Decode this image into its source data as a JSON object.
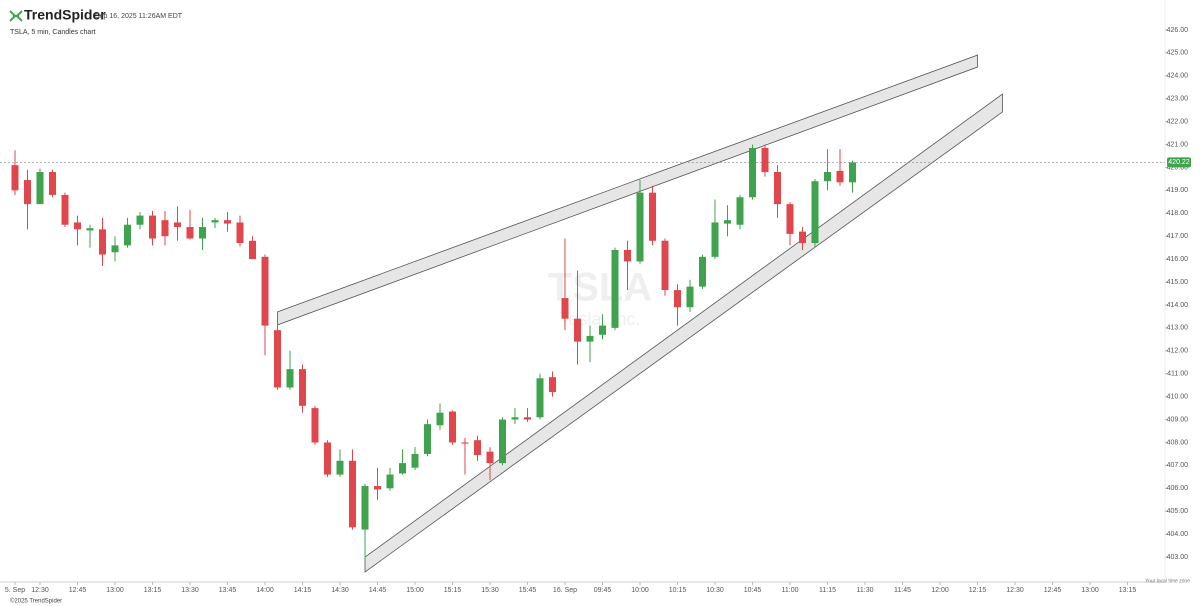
{
  "header": {
    "brand": "TrendSpider",
    "timestamp": "Sep 16, 2025 11:26AM EDT",
    "subtitle": "TSLA, 5 min, Candles chart"
  },
  "chart_data": {
    "type": "candlestick",
    "up_color": "#3fa34d",
    "down_color": "#e0474c",
    "open": [
      420.1,
      419.45,
      418.4,
      419.8,
      418.8,
      417.6,
      417.25,
      417.3,
      416.3,
      416.6,
      417.5,
      417.9,
      417.7,
      417.6,
      417.4,
      416.9,
      417.6,
      417.7,
      417.6,
      416.8,
      416.1,
      412.9,
      410.4,
      411.2,
      409.5,
      408.0,
      406.6,
      407.2,
      404.2,
      406.1,
      406.0,
      406.65,
      406.9,
      407.5,
      408.75,
      409.35,
      408.0,
      408.1,
      407.6,
      407.1,
      409.0,
      409.1,
      409.1,
      410.85,
      414.3,
      413.4,
      412.4,
      412.7,
      413.0,
      416.4,
      415.9,
      418.9,
      416.8,
      414.65,
      413.9,
      414.8,
      416.1,
      417.55,
      417.5,
      418.7,
      420.85,
      419.8,
      418.4,
      417.2,
      416.7,
      419.4,
      419.85,
      419.35
    ],
    "high": [
      420.75,
      419.9,
      419.95,
      419.9,
      418.9,
      417.9,
      417.5,
      417.8,
      417.0,
      417.8,
      418.05,
      418.1,
      418.1,
      418.3,
      418.15,
      417.8,
      417.8,
      418.05,
      417.9,
      417.0,
      416.2,
      413.3,
      412.0,
      411.4,
      409.6,
      408.1,
      407.7,
      407.7,
      406.2,
      406.9,
      406.9,
      407.7,
      407.8,
      409.0,
      409.7,
      409.4,
      408.2,
      408.3,
      407.8,
      409.1,
      409.5,
      409.5,
      411.0,
      411.1,
      416.9,
      415.5,
      413.1,
      413.6,
      416.5,
      416.8,
      419.45,
      419.2,
      416.9,
      414.9,
      415.1,
      416.2,
      418.6,
      418.35,
      418.8,
      421.0,
      421.0,
      420.1,
      418.5,
      417.4,
      419.5,
      420.8,
      420.8,
      420.3
    ],
    "low": [
      418.8,
      417.3,
      418.4,
      418.7,
      417.4,
      416.6,
      416.5,
      415.7,
      415.9,
      416.5,
      417.3,
      416.6,
      416.6,
      416.8,
      416.85,
      416.4,
      417.35,
      417.2,
      416.55,
      416.0,
      411.8,
      410.3,
      410.3,
      409.3,
      407.9,
      406.5,
      406.5,
      404.2,
      402.9,
      405.5,
      405.9,
      406.6,
      406.8,
      407.4,
      408.55,
      407.9,
      406.6,
      407.2,
      406.35,
      407.0,
      408.8,
      408.9,
      409.0,
      410.0,
      412.9,
      411.4,
      411.5,
      412.5,
      412.9,
      414.65,
      415.8,
      416.6,
      414.4,
      413.1,
      413.7,
      414.7,
      416.0,
      417.0,
      417.3,
      418.6,
      419.6,
      417.8,
      416.6,
      416.4,
      416.5,
      419.0,
      419.2,
      418.9
    ],
    "close": [
      419.0,
      418.4,
      419.8,
      418.8,
      417.5,
      417.3,
      417.35,
      416.2,
      416.6,
      417.5,
      417.9,
      416.9,
      417.0,
      417.4,
      416.9,
      417.4,
      417.7,
      417.55,
      416.7,
      416.0,
      413.1,
      410.4,
      411.2,
      409.6,
      408.0,
      406.6,
      407.2,
      404.3,
      406.1,
      405.95,
      406.6,
      407.1,
      407.5,
      408.8,
      409.3,
      408.0,
      407.95,
      407.45,
      407.1,
      409.0,
      409.1,
      409.0,
      410.8,
      410.2,
      413.4,
      412.4,
      412.65,
      413.1,
      416.4,
      415.9,
      418.9,
      416.8,
      414.65,
      413.9,
      414.8,
      416.1,
      417.6,
      417.7,
      418.7,
      420.85,
      419.8,
      418.4,
      417.1,
      416.7,
      419.4,
      419.8,
      419.35,
      420.22
    ],
    "xlim": [
      -1.2,
      92
    ],
    "xticks": [
      {
        "value": 0,
        "label": "5. Sep"
      },
      {
        "value": 2,
        "label": "12:30"
      },
      {
        "value": 5,
        "label": "12:45"
      },
      {
        "value": 8,
        "label": "13:00"
      },
      {
        "value": 11,
        "label": "13:15"
      },
      {
        "value": 14,
        "label": "13:30"
      },
      {
        "value": 17,
        "label": "13:45"
      },
      {
        "value": 20,
        "label": "14:00"
      },
      {
        "value": 23,
        "label": "14:15"
      },
      {
        "value": 26,
        "label": "14:30"
      },
      {
        "value": 29,
        "label": "14:45"
      },
      {
        "value": 32,
        "label": "15:00"
      },
      {
        "value": 35,
        "label": "15:15"
      },
      {
        "value": 38,
        "label": "15:30"
      },
      {
        "value": 41,
        "label": "15:45"
      },
      {
        "value": 44,
        "label": "16. Sep"
      },
      {
        "value": 47,
        "label": "09:45"
      },
      {
        "value": 50,
        "label": "10:00"
      },
      {
        "value": 53,
        "label": "10:15"
      },
      {
        "value": 56,
        "label": "10:30"
      },
      {
        "value": 59,
        "label": "10:45"
      },
      {
        "value": 62,
        "label": "11:00"
      },
      {
        "value": 65,
        "label": "11:15"
      },
      {
        "value": 68,
        "label": "11:30"
      },
      {
        "value": 71,
        "label": "11:45"
      },
      {
        "value": 74,
        "label": "12:00"
      },
      {
        "value": 77,
        "label": "12:15"
      },
      {
        "value": 80,
        "label": "12:30"
      },
      {
        "value": 83,
        "label": "12:45"
      },
      {
        "value": 86,
        "label": "13:00"
      },
      {
        "value": 89,
        "label": "13:15"
      }
    ],
    "ylim": [
      402,
      427
    ],
    "yticks": [
      {
        "value": 403,
        "label": "403.00"
      },
      {
        "value": 404,
        "label": "404.00"
      },
      {
        "value": 405,
        "label": "405.00"
      },
      {
        "value": 406,
        "label": "406.00"
      },
      {
        "value": 407,
        "label": "407.00"
      },
      {
        "value": 408,
        "label": "408.00"
      },
      {
        "value": 409,
        "label": "409.00"
      },
      {
        "value": 410,
        "label": "410.00"
      },
      {
        "value": 411,
        "label": "411.00"
      },
      {
        "value": 412,
        "label": "412.00"
      },
      {
        "value": 413,
        "label": "413.00"
      },
      {
        "value": 414,
        "label": "414.00"
      },
      {
        "value": 415,
        "label": "415.00"
      },
      {
        "value": 416,
        "label": "416.00"
      },
      {
        "value": 417,
        "label": "417.00"
      },
      {
        "value": 418,
        "label": "418.00"
      },
      {
        "value": 419,
        "label": "419.00"
      },
      {
        "value": 420,
        "label": "420.00"
      },
      {
        "value": 421,
        "label": "421.00"
      },
      {
        "value": 422,
        "label": "422.00"
      },
      {
        "value": 423,
        "label": "423.00"
      },
      {
        "value": 424,
        "label": "424.00"
      },
      {
        "value": 425,
        "label": "425.00"
      },
      {
        "value": 426,
        "label": "426.00"
      }
    ],
    "last_price": 420.22,
    "channels": [
      {
        "x": [
          21,
          77
        ],
        "top": [
          413.7,
          424.9
        ],
        "bottom": [
          413.13,
          424.38
        ]
      },
      {
        "x": [
          28,
          79
        ],
        "top": [
          403.0,
          423.2
        ],
        "bottom": [
          402.35,
          422.42
        ]
      }
    ],
    "watermark": {
      "symbol": "TSLA",
      "name": "Tesla, Inc."
    },
    "timezone_note": "Your local time zone",
    "footer": "©2025 TrendSpider"
  }
}
